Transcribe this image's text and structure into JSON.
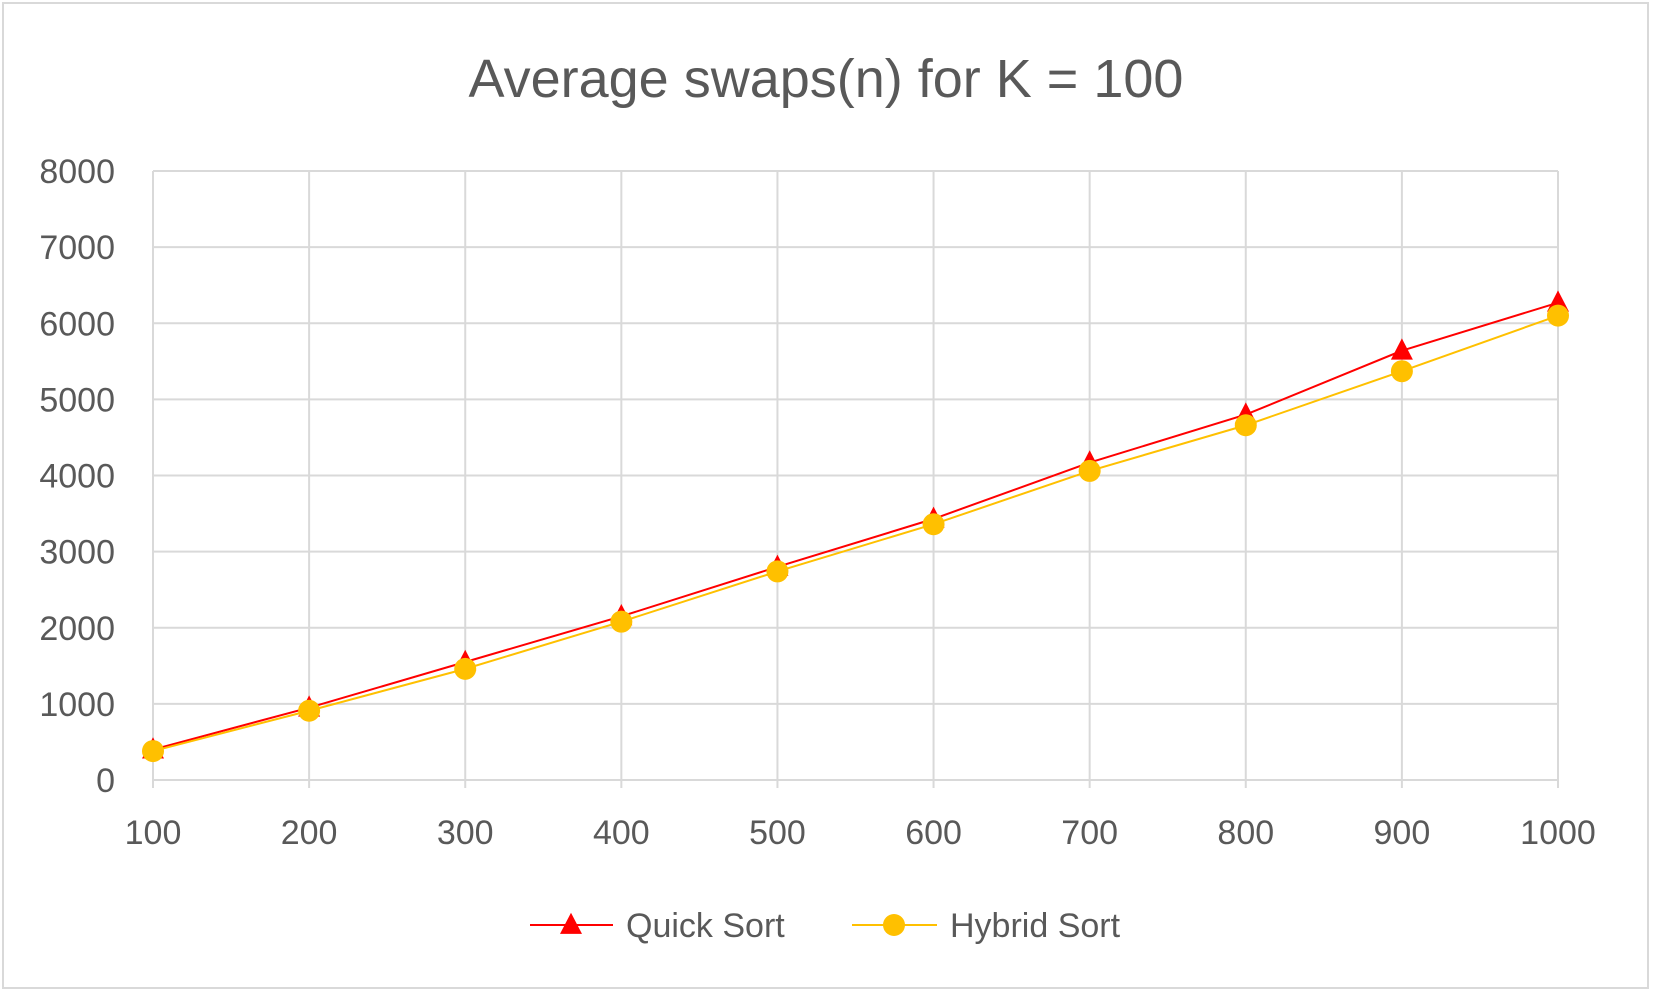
{
  "chart_data": {
    "type": "line",
    "title": "Average swaps(n) for K = 100",
    "xlabel": "",
    "ylabel": "",
    "categories": [
      "100",
      "200",
      "300",
      "400",
      "500",
      "600",
      "700",
      "800",
      "900",
      "1000"
    ],
    "x": [
      100,
      200,
      300,
      400,
      500,
      600,
      700,
      800,
      900,
      1000
    ],
    "ylim": [
      0,
      8000
    ],
    "yticks": [
      "0",
      "1000",
      "2000",
      "3000",
      "4000",
      "5000",
      "6000",
      "7000",
      "8000"
    ],
    "grid": true,
    "legend_position": "bottom",
    "series": [
      {
        "name": "Quick Sort",
        "color": "#ff0000",
        "marker": "triangle",
        "values": [
          400,
          950,
          1550,
          2150,
          2800,
          3430,
          4170,
          4800,
          5640,
          6270
        ]
      },
      {
        "name": "Hybrid Sort",
        "color": "#ffc000",
        "marker": "circle",
        "values": [
          380,
          910,
          1460,
          2080,
          2740,
          3360,
          4060,
          4660,
          5370,
          6100
        ]
      }
    ]
  }
}
